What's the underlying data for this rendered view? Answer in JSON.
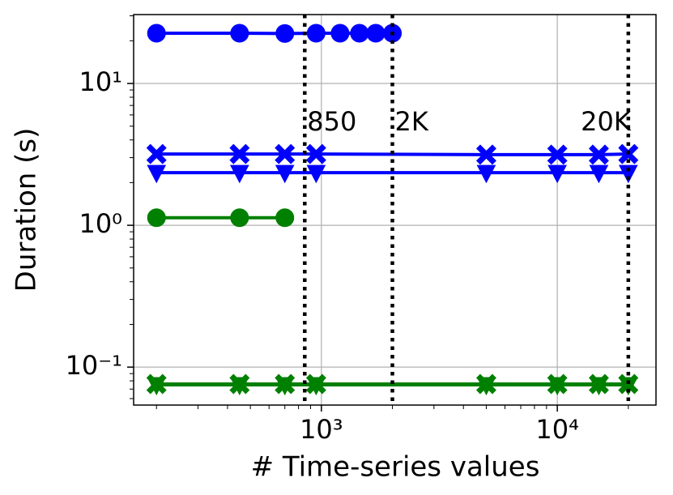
{
  "chart_data": {
    "type": "line",
    "xlabel": "# Time-series values",
    "ylabel": "Duration (s)",
    "xscale": "log",
    "yscale": "log",
    "grid": true,
    "xlim": [
      160,
      26200
    ],
    "ylim": [
      0.054,
      30.6
    ],
    "xticks": [
      {
        "value": 1000,
        "label": "10³"
      },
      {
        "value": 10000,
        "label": "10⁴"
      }
    ],
    "yticks": [
      {
        "value": 0.1,
        "label": "10⁻¹"
      },
      {
        "value": 1,
        "label": "10⁰"
      },
      {
        "value": 10,
        "label": "10¹"
      }
    ],
    "vlines": [
      {
        "x": 850,
        "label": "850"
      },
      {
        "x": 2000,
        "label": "2K"
      },
      {
        "x": 20000,
        "label": "20K"
      }
    ],
    "series": [
      {
        "color": "#0000ff",
        "marker": "circle",
        "x": [
          200,
          450,
          700,
          950,
          1200,
          1450,
          1700,
          2000
        ],
        "values": [
          22.6,
          22.6,
          22.5,
          22.6,
          22.6,
          22.6,
          22.6,
          22.6
        ]
      },
      {
        "color": "#0000ff",
        "marker": "x",
        "x": [
          200,
          450,
          700,
          950,
          5000,
          10000,
          15000,
          20000
        ],
        "values": [
          3.18,
          3.18,
          3.18,
          3.18,
          3.15,
          3.15,
          3.15,
          3.18
        ]
      },
      {
        "color": "#0000ff",
        "marker": "triangle-down",
        "x": [
          200,
          450,
          700,
          950,
          5000,
          10000,
          15000,
          20000
        ],
        "values": [
          2.35,
          2.35,
          2.35,
          2.35,
          2.35,
          2.35,
          2.35,
          2.35
        ]
      },
      {
        "color": "#008000",
        "marker": "circle",
        "x": [
          200,
          450,
          700
        ],
        "values": [
          1.13,
          1.13,
          1.13
        ]
      },
      {
        "color": "#008000",
        "marker": "triangle-down",
        "x": [
          200,
          450,
          700,
          950,
          5000,
          10000,
          15000,
          20000
        ],
        "values": [
          0.075,
          0.075,
          0.075,
          0.075,
          0.075,
          0.075,
          0.075,
          0.075
        ]
      },
      {
        "color": "#008000",
        "marker": "x",
        "x": [
          200,
          450,
          700,
          950,
          5000,
          10000,
          15000,
          20000
        ],
        "values": [
          0.076,
          0.076,
          0.076,
          0.076,
          0.076,
          0.076,
          0.076,
          0.076
        ]
      }
    ]
  }
}
